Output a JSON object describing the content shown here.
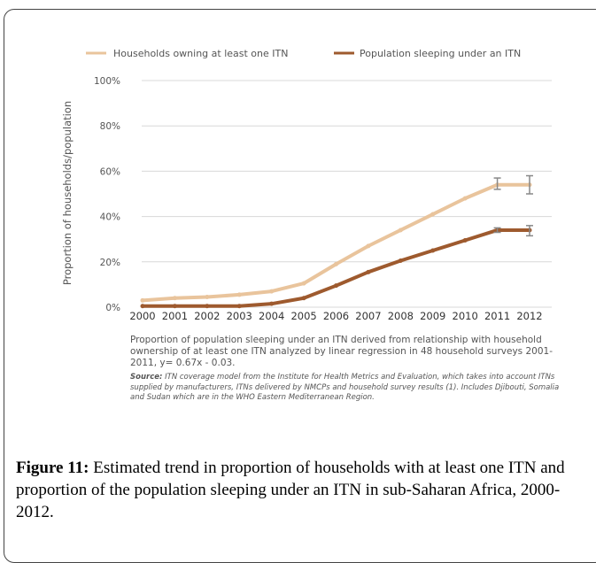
{
  "chart_data": {
    "type": "line",
    "title": "",
    "xlabel": "",
    "ylabel": "Proportion of households/population",
    "x": [
      "2000",
      "2001",
      "2002",
      "2003",
      "2004",
      "2005",
      "2006",
      "2007",
      "2008",
      "2009",
      "2010",
      "2011",
      "2012"
    ],
    "yticks": [
      "0%",
      "20%",
      "40%",
      "60%",
      "80%",
      "100%"
    ],
    "ylim": [
      0,
      100
    ],
    "grid": true,
    "legend_position": "top",
    "series": [
      {
        "name": "Households owning at least one ITN",
        "color": "#e9c49c",
        "values": [
          3,
          4,
          4.5,
          5.5,
          7,
          10.5,
          19,
          27,
          34,
          41,
          48,
          54,
          54
        ],
        "error_bars": [
          null,
          null,
          null,
          null,
          null,
          null,
          null,
          null,
          null,
          null,
          null,
          [
            52,
            57
          ],
          [
            50,
            58
          ]
        ]
      },
      {
        "name": "Population sleeping under an ITN",
        "color": "#9e5a2e",
        "values": [
          0.5,
          0.5,
          0.5,
          0.5,
          1.5,
          4,
          9.5,
          15.5,
          20.5,
          25,
          29.5,
          34,
          34
        ],
        "error_bars": [
          null,
          null,
          null,
          null,
          null,
          null,
          null,
          null,
          null,
          null,
          null,
          [
            33,
            35
          ],
          [
            31.5,
            36
          ]
        ]
      }
    ]
  },
  "notes": {
    "method": "Proportion of population sleeping under an ITN derived from relationship with household ownership of at least one ITN analyzed by linear regression in 48 household surveys 2001-2011, y= 0.67x - 0.03.",
    "source_label": "Source:",
    "source_text": "ITN coverage model from the Institute for Health Metrics and Evaluation, which takes into account ITNs supplied by manufacturers, ITNs delivered by NMCPs and household survey results (1). Includes Djibouti, Somalia and Sudan which are in the WHO Eastern Mediterranean Region."
  },
  "caption": {
    "label": "Figure 11:",
    "text": " Estimated trend in proportion of households with at least one ITN and proportion of the population sleeping under an ITN in sub-Saharan Africa, 2000-2012."
  }
}
